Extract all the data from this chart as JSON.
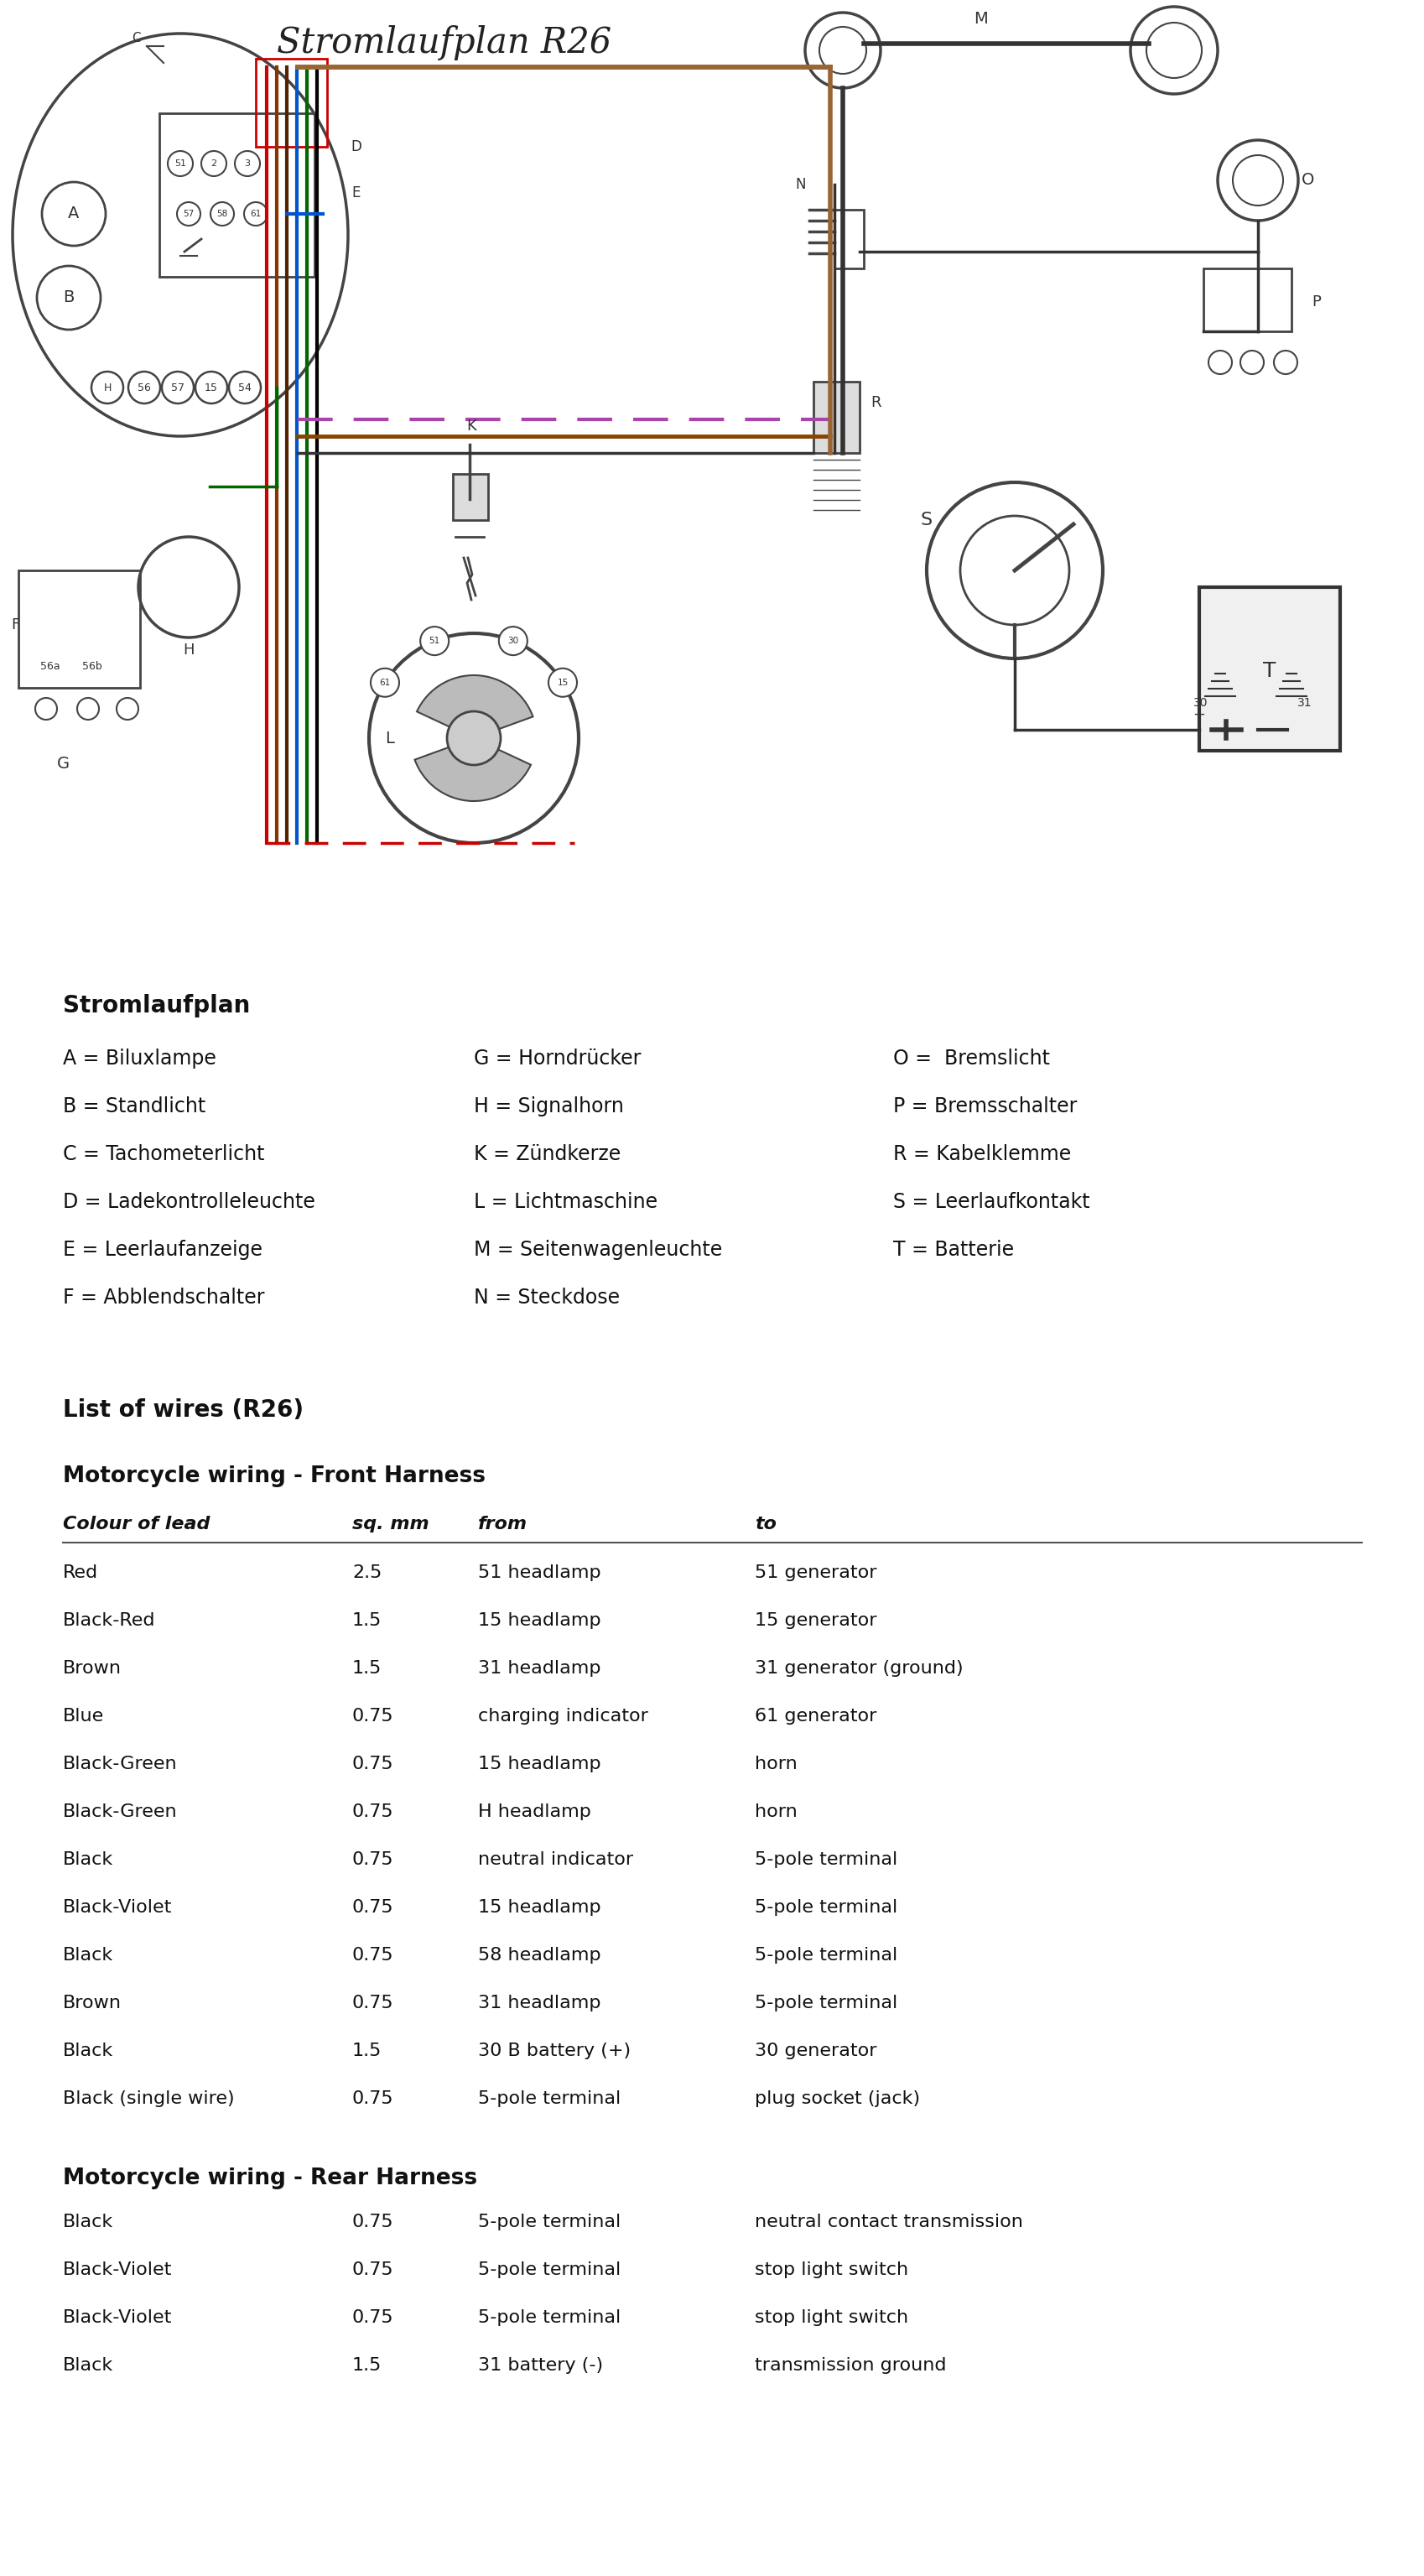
{
  "title": "Stromlaufplan R26",
  "background_color": "#ffffff",
  "legend_title": "Stromlaufplan",
  "legend_items_col1": [
    "A = Biluxlampe",
    "B = Standlicht",
    "C = Tachometerlicht",
    "D = Ladekontrolleleuchte",
    "E = Leerlaufanzeige",
    "F = Abblendschalter"
  ],
  "legend_items_col2": [
    "G = Horndrücker",
    "H = Signalhorn",
    "K = Zündkerze",
    "L = Lichtmaschine",
    "M = Seitenwagenleuchte",
    "N = Steckdose"
  ],
  "legend_items_col3": [
    "O =  Bremslicht",
    "P = Bremsschalter",
    "R = Kabelklemme",
    "S = Leerlaufkontakt",
    "T = Batterie",
    ""
  ],
  "list_title": "List of wires (R26)",
  "front_harness_title": "Motorcycle wiring - Front Harness",
  "front_harness_headers": [
    "Colour of lead",
    "sq. mm",
    "from",
    "to"
  ],
  "front_harness_rows": [
    [
      "Red",
      "2.5",
      "51 headlamp",
      "51 generator"
    ],
    [
      "Black-Red",
      "1.5",
      "15 headlamp",
      "15 generator"
    ],
    [
      "Brown",
      "1.5",
      "31 headlamp",
      "31 generator (ground)"
    ],
    [
      "Blue",
      "0.75",
      "charging indicator",
      "61 generator"
    ],
    [
      "Black-Green",
      "0.75",
      "15 headlamp",
      "horn"
    ],
    [
      "Black-Green",
      "0.75",
      "H headlamp",
      "horn"
    ],
    [
      "Black",
      "0.75",
      "neutral indicator",
      "5-pole terminal"
    ],
    [
      "Black-Violet",
      "0.75",
      "15 headlamp",
      "5-pole terminal"
    ],
    [
      "Black",
      "0.75",
      "58 headlamp",
      "5-pole terminal"
    ],
    [
      "Brown",
      "0.75",
      "31 headlamp",
      "5-pole terminal"
    ],
    [
      "Black",
      "1.5",
      "30 B battery (+)",
      "30 generator"
    ],
    [
      "Black (single wire)",
      "0.75",
      "5-pole terminal",
      "plug socket (jack)"
    ]
  ],
  "rear_harness_title": "Motorcycle wiring - Rear Harness",
  "rear_harness_rows": [
    [
      "Black",
      "0.75",
      "5-pole terminal",
      "neutral contact transmission"
    ],
    [
      "Black-Violet",
      "0.75",
      "5-pole terminal",
      "stop light switch"
    ],
    [
      "Black-Violet",
      "0.75",
      "5-pole terminal",
      "stop light switch"
    ],
    [
      "Black",
      "1.5",
      "31 battery (-)",
      "transmission ground"
    ]
  ]
}
